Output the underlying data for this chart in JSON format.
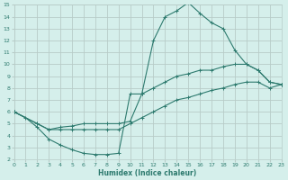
{
  "xlabel": "Humidex (Indice chaleur)",
  "bg_color": "#d5efeb",
  "grid_color": "#b8ccc8",
  "line_color": "#2d7a6e",
  "xlim": [
    0,
    23
  ],
  "ylim": [
    2,
    15
  ],
  "xticks": [
    0,
    1,
    2,
    3,
    4,
    5,
    6,
    7,
    8,
    9,
    10,
    11,
    12,
    13,
    14,
    15,
    16,
    17,
    18,
    19,
    20,
    21,
    22,
    23
  ],
  "yticks": [
    2,
    3,
    4,
    5,
    6,
    7,
    8,
    9,
    10,
    11,
    12,
    13,
    14,
    15
  ],
  "line1_x": [
    0,
    1,
    2,
    3,
    4,
    5,
    6,
    7,
    8,
    9,
    10,
    11,
    12,
    13,
    14,
    15,
    16,
    17,
    18,
    19,
    20,
    21,
    22,
    23
  ],
  "line1_y": [
    6.0,
    5.5,
    4.7,
    3.7,
    3.2,
    2.8,
    2.5,
    2.4,
    2.4,
    2.5,
    7.5,
    7.5,
    12.0,
    14.0,
    14.5,
    15.2,
    14.3,
    13.5,
    13.0,
    11.2,
    10.0,
    9.5,
    8.5,
    8.3
  ],
  "line2_x": [
    0,
    2,
    3,
    4,
    5,
    6,
    7,
    8,
    9,
    10,
    11,
    12,
    13,
    14,
    15,
    16,
    17,
    18,
    19,
    20,
    21,
    22,
    23
  ],
  "line2_y": [
    6.0,
    5.0,
    4.5,
    4.7,
    4.8,
    5.0,
    5.0,
    5.0,
    5.0,
    5.2,
    7.5,
    8.0,
    8.5,
    9.0,
    9.2,
    9.5,
    9.5,
    9.8,
    10.0,
    10.0,
    9.5,
    8.5,
    8.3
  ],
  "line3_x": [
    0,
    2,
    3,
    4,
    5,
    6,
    7,
    8,
    9,
    10,
    11,
    12,
    13,
    14,
    15,
    16,
    17,
    18,
    19,
    20,
    21,
    22,
    23
  ],
  "line3_y": [
    6.0,
    5.0,
    4.5,
    4.5,
    4.5,
    4.5,
    4.5,
    4.5,
    4.5,
    5.0,
    5.5,
    6.0,
    6.5,
    7.0,
    7.2,
    7.5,
    7.8,
    8.0,
    8.3,
    8.5,
    8.5,
    8.0,
    8.3
  ]
}
